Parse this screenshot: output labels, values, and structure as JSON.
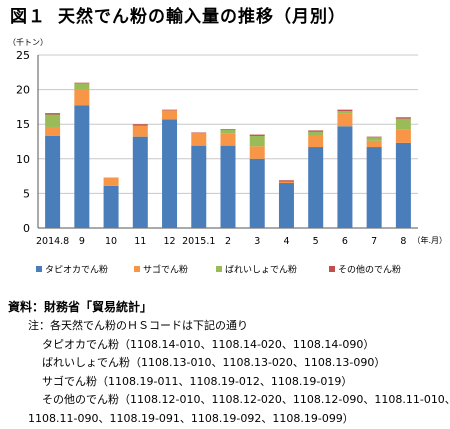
{
  "title": {
    "label": "図１",
    "text": "天然でん粉の輸入量の推移（月別）"
  },
  "chart_data": {
    "type": "bar",
    "stacked": true,
    "ylabel": "（千トン）",
    "xlabel": "（年.月）",
    "ylim": [
      0,
      25
    ],
    "yticks": [
      0,
      5,
      10,
      15,
      20,
      25
    ],
    "grid": true,
    "legend_position": "bottom",
    "categories": [
      "2014.8",
      "9",
      "10",
      "11",
      "12",
      "2015.1",
      "2",
      "3",
      "4",
      "5",
      "6",
      "7",
      "8"
    ],
    "series": [
      {
        "name": "タピオカでん粉",
        "color": "#4a7ebb",
        "values": [
          13.3,
          17.7,
          6.1,
          13.2,
          15.7,
          11.9,
          11.9,
          10.0,
          6.5,
          11.7,
          14.7,
          11.7,
          12.3
        ]
      },
      {
        "name": "サゴでん粉",
        "color": "#f79646",
        "values": [
          1.3,
          2.3,
          1.2,
          1.6,
          1.3,
          1.8,
          1.8,
          1.8,
          0.2,
          1.6,
          1.8,
          0.9,
          1.9
        ]
      },
      {
        "name": "ばれいしょでん粉",
        "color": "#9bbb59",
        "values": [
          1.8,
          0.9,
          0.0,
          0.0,
          0.0,
          0.0,
          0.5,
          1.5,
          0.0,
          0.6,
          0.4,
          0.5,
          1.6
        ]
      },
      {
        "name": "その他のでん粉",
        "color": "#c0504d",
        "values": [
          0.2,
          0.1,
          0.0,
          0.2,
          0.1,
          0.1,
          0.1,
          0.2,
          0.2,
          0.2,
          0.2,
          0.1,
          0.2
        ]
      }
    ]
  },
  "source": "資料：財務省「貿易統計」",
  "notes": [
    "注：各天然でん粉のＨＳコードは下記の通り",
    "タピオカでん粉（1108.14-010、1108.14-020、1108.14-090）",
    "ばれいしょでん粉（1108.13-010、1108.13-020、1108.13-090）",
    "サゴでん粉（1108.19-011、1108.19-012、1108.19-019）",
    "その他のでん粉（1108.12-010、1108.12-020、1108.12-090、1108.11-010、",
    "1108.11-090、1108.19-091、1108.19-092、1108.19-099）"
  ]
}
